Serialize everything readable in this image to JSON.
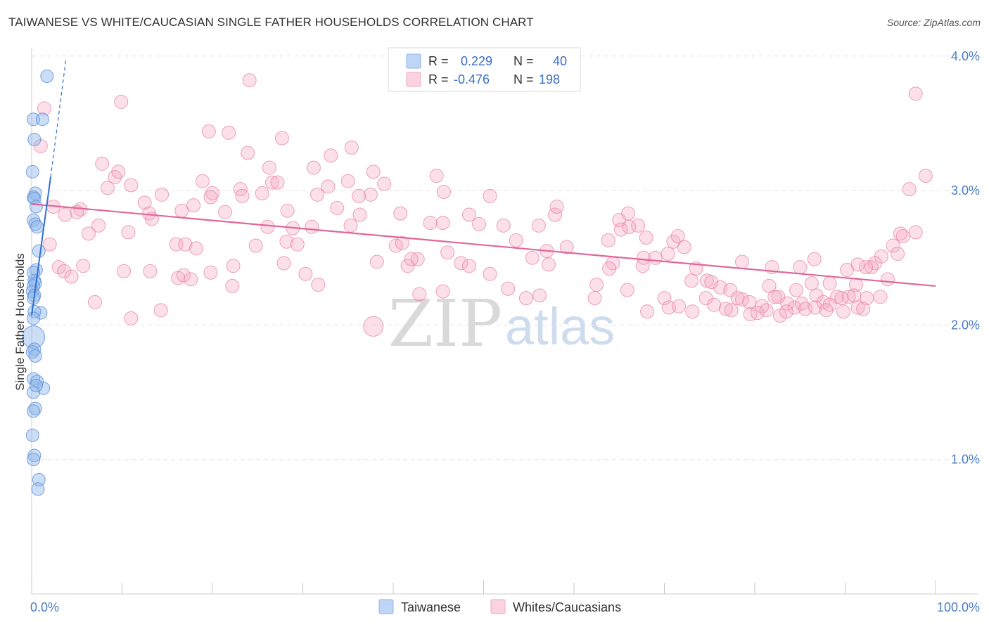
{
  "title": "TAIWANESE VS WHITE/CAUCASIAN SINGLE FATHER HOUSEHOLDS CORRELATION CHART",
  "source": "Source: ZipAtlas.com",
  "colors": {
    "taiwanese": "#8fb5ea",
    "white": "#f3a6c0",
    "blue_line": "#2f6fd4",
    "pink_line": "#e0679a",
    "axis_text": "#4a7cc7"
  },
  "legend": {
    "rows": [
      {
        "r_label": "R =",
        "r_value": "0.229",
        "n_label": "N =",
        "n_value": "40"
      },
      {
        "r_label": "R =",
        "r_value": "-0.476",
        "n_label": "N =",
        "n_value": "198"
      }
    ],
    "bottom": [
      "Taiwanese",
      "Whites/Caucasians"
    ]
  },
  "watermark": {
    "zip": "ZIP",
    "atlas": "atlas"
  },
  "chart_data": {
    "type": "scatter",
    "title": "TAIWANESE VS WHITE/CAUCASIAN SINGLE FATHER HOUSEHOLDS CORRELATION CHART",
    "xlabel": "",
    "ylabel": "Single Father Households",
    "xlim": [
      0,
      100
    ],
    "ylim": [
      0,
      4.2
    ],
    "x_tick_labels": [
      "0.0%",
      "100.0%"
    ],
    "y_ticks": [
      1.0,
      2.0,
      3.0,
      4.0
    ],
    "y_tick_labels": [
      "1.0%",
      "2.0%",
      "3.0%",
      "4.0%"
    ],
    "grid": true,
    "legend_position": "top-center",
    "series": [
      {
        "name": "Taiwanese",
        "r": 0.229,
        "n": 40,
        "trend": {
          "x": [
            0,
            2.1
          ],
          "y": [
            2.07,
            3.1
          ]
        },
        "trend_dashed": {
          "x": [
            2.1,
            3.8
          ],
          "y": [
            3.1,
            3.98
          ]
        },
        "points": [
          [
            1.7,
            3.85
          ],
          [
            0.2,
            3.53
          ],
          [
            1.2,
            3.53
          ],
          [
            0.3,
            3.38
          ],
          [
            0.1,
            3.14
          ],
          [
            0.4,
            2.98
          ],
          [
            0.2,
            2.95
          ],
          [
            0.3,
            2.94
          ],
          [
            0.5,
            2.88
          ],
          [
            0.2,
            2.78
          ],
          [
            0.4,
            2.75
          ],
          [
            0.6,
            2.73
          ],
          [
            0.8,
            2.55
          ],
          [
            0.5,
            2.41
          ],
          [
            0.2,
            2.39
          ],
          [
            0.3,
            2.33
          ],
          [
            0.4,
            2.31
          ],
          [
            0.2,
            2.29
          ],
          [
            0.1,
            2.25
          ],
          [
            0.3,
            2.22
          ],
          [
            0.2,
            2.2
          ],
          [
            1.0,
            2.09
          ],
          [
            0.2,
            1.91
          ],
          [
            0.3,
            1.82
          ],
          [
            0.1,
            1.8
          ],
          [
            0.4,
            1.77
          ],
          [
            0.2,
            1.6
          ],
          [
            0.6,
            1.58
          ],
          [
            1.3,
            1.53
          ],
          [
            0.2,
            1.5
          ],
          [
            0.4,
            1.38
          ],
          [
            0.2,
            1.36
          ],
          [
            0.1,
            1.18
          ],
          [
            0.3,
            1.03
          ],
          [
            0.2,
            1.0
          ],
          [
            0.8,
            0.85
          ],
          [
            0.7,
            0.78
          ],
          [
            0.3,
            2.1
          ],
          [
            0.5,
            1.55
          ],
          [
            0.2,
            2.05
          ]
        ],
        "sizes": [
          9,
          9,
          9,
          9,
          9,
          9,
          9,
          9,
          9,
          9,
          9,
          9,
          9,
          9,
          9,
          9,
          9,
          9,
          9,
          9,
          9,
          9,
          16,
          9,
          9,
          9,
          9,
          9,
          9,
          9,
          9,
          9,
          9,
          9,
          9,
          9,
          9,
          9,
          9,
          9
        ]
      },
      {
        "name": "Whites/Caucasians",
        "r": -0.476,
        "n": 198,
        "trend": {
          "x": [
            0,
            100
          ],
          "y": [
            2.9,
            2.29
          ]
        },
        "points": [
          [
            24.1,
            3.82
          ],
          [
            1.4,
            3.61
          ],
          [
            9.9,
            3.66
          ],
          [
            1.0,
            3.33
          ],
          [
            97.8,
            3.72
          ],
          [
            19.6,
            3.44
          ],
          [
            21.8,
            3.43
          ],
          [
            27.7,
            3.39
          ],
          [
            23.9,
            3.28
          ],
          [
            33.1,
            3.26
          ],
          [
            35.4,
            3.32
          ],
          [
            7.8,
            3.2
          ],
          [
            9.2,
            3.1
          ],
          [
            9.6,
            3.14
          ],
          [
            26.3,
            3.17
          ],
          [
            31.2,
            3.17
          ],
          [
            37.8,
            3.14
          ],
          [
            44.8,
            3.11
          ],
          [
            11.0,
            3.04
          ],
          [
            8.4,
            3.02
          ],
          [
            18.9,
            3.07
          ],
          [
            26.6,
            3.06
          ],
          [
            27.2,
            3.06
          ],
          [
            35.0,
            3.07
          ],
          [
            39.0,
            3.05
          ],
          [
            32.8,
            3.03
          ],
          [
            23.1,
            3.01
          ],
          [
            20.0,
            2.98
          ],
          [
            25.5,
            2.98
          ],
          [
            31.6,
            2.97
          ],
          [
            36.2,
            2.96
          ],
          [
            19.8,
            2.95
          ],
          [
            23.3,
            2.96
          ],
          [
            37.5,
            2.97
          ],
          [
            45.6,
            2.99
          ],
          [
            50.7,
            2.96
          ],
          [
            97.1,
            3.01
          ],
          [
            98.9,
            3.11
          ],
          [
            14.4,
            2.97
          ],
          [
            12.5,
            2.91
          ],
          [
            2.4,
            2.88
          ],
          [
            3.7,
            2.82
          ],
          [
            5.4,
            2.86
          ],
          [
            16.6,
            2.85
          ],
          [
            17.9,
            2.89
          ],
          [
            21.4,
            2.84
          ],
          [
            28.3,
            2.85
          ],
          [
            33.8,
            2.87
          ],
          [
            36.3,
            2.82
          ],
          [
            40.8,
            2.83
          ],
          [
            48.4,
            2.82
          ],
          [
            57.9,
            2.82
          ],
          [
            58.1,
            2.88
          ],
          [
            65.0,
            2.78
          ],
          [
            66.0,
            2.83
          ],
          [
            5.0,
            2.84
          ],
          [
            13.0,
            2.83
          ],
          [
            13.3,
            2.79
          ],
          [
            7.4,
            2.74
          ],
          [
            10.7,
            2.69
          ],
          [
            2.0,
            2.6
          ],
          [
            6.3,
            2.68
          ],
          [
            16.0,
            2.6
          ],
          [
            26.1,
            2.73
          ],
          [
            28.9,
            2.72
          ],
          [
            31.0,
            2.73
          ],
          [
            35.3,
            2.74
          ],
          [
            44.1,
            2.76
          ],
          [
            45.5,
            2.76
          ],
          [
            49.5,
            2.75
          ],
          [
            52.2,
            2.74
          ],
          [
            56.1,
            2.74
          ],
          [
            53.6,
            2.63
          ],
          [
            59.2,
            2.58
          ],
          [
            63.8,
            2.63
          ],
          [
            65.2,
            2.71
          ],
          [
            66.1,
            2.73
          ],
          [
            67.1,
            2.74
          ],
          [
            68.0,
            2.65
          ],
          [
            71.0,
            2.62
          ],
          [
            71.5,
            2.66
          ],
          [
            72.2,
            2.58
          ],
          [
            97.8,
            2.69
          ],
          [
            96.4,
            2.66
          ],
          [
            17.0,
            2.6
          ],
          [
            18.2,
            2.57
          ],
          [
            24.8,
            2.59
          ],
          [
            28.2,
            2.62
          ],
          [
            29.4,
            2.6
          ],
          [
            40.3,
            2.59
          ],
          [
            41.0,
            2.61
          ],
          [
            42.7,
            2.49
          ],
          [
            46.0,
            2.54
          ],
          [
            55.4,
            2.5
          ],
          [
            57.0,
            2.55
          ],
          [
            64.3,
            2.46
          ],
          [
            67.7,
            2.5
          ],
          [
            69.0,
            2.5
          ],
          [
            70.4,
            2.53
          ],
          [
            95.3,
            2.59
          ],
          [
            95.8,
            2.53
          ],
          [
            94.0,
            2.51
          ],
          [
            96.1,
            2.68
          ],
          [
            3.0,
            2.43
          ],
          [
            5.7,
            2.44
          ],
          [
            13.1,
            2.4
          ],
          [
            16.2,
            2.35
          ],
          [
            19.8,
            2.39
          ],
          [
            22.3,
            2.44
          ],
          [
            27.9,
            2.46
          ],
          [
            30.3,
            2.38
          ],
          [
            38.2,
            2.47
          ],
          [
            41.6,
            2.44
          ],
          [
            42.0,
            2.49
          ],
          [
            47.5,
            2.46
          ],
          [
            48.4,
            2.44
          ],
          [
            50.7,
            2.38
          ],
          [
            57.2,
            2.45
          ],
          [
            63.9,
            2.42
          ],
          [
            67.6,
            2.44
          ],
          [
            73.5,
            2.42
          ],
          [
            78.6,
            2.47
          ],
          [
            81.9,
            2.43
          ],
          [
            85.0,
            2.43
          ],
          [
            86.6,
            2.49
          ],
          [
            93.3,
            2.46
          ],
          [
            92.9,
            2.43
          ],
          [
            92.3,
            2.43
          ],
          [
            91.4,
            2.45
          ],
          [
            90.2,
            2.41
          ],
          [
            3.6,
            2.4
          ],
          [
            4.4,
            2.36
          ],
          [
            10.2,
            2.4
          ],
          [
            16.8,
            2.37
          ],
          [
            17.6,
            2.34
          ],
          [
            22.2,
            2.29
          ],
          [
            31.7,
            2.3
          ],
          [
            52.7,
            2.27
          ],
          [
            56.2,
            2.22
          ],
          [
            62.5,
            2.3
          ],
          [
            65.9,
            2.26
          ],
          [
            73.0,
            2.33
          ],
          [
            74.7,
            2.33
          ],
          [
            75.2,
            2.32
          ],
          [
            76.2,
            2.28
          ],
          [
            77.3,
            2.26
          ],
          [
            81.6,
            2.29
          ],
          [
            84.6,
            2.26
          ],
          [
            86.3,
            2.31
          ],
          [
            88.3,
            2.31
          ],
          [
            91.2,
            2.3
          ],
          [
            94.7,
            2.34
          ],
          [
            7.0,
            2.17
          ],
          [
            14.3,
            2.11
          ],
          [
            42.9,
            2.23
          ],
          [
            45.5,
            2.25
          ],
          [
            54.7,
            2.2
          ],
          [
            62.3,
            2.2
          ],
          [
            70.0,
            2.2
          ],
          [
            74.6,
            2.2
          ],
          [
            78.1,
            2.2
          ],
          [
            78.6,
            2.19
          ],
          [
            82.6,
            2.21
          ],
          [
            84.4,
            2.13
          ],
          [
            86.8,
            2.22
          ],
          [
            89.1,
            2.21
          ],
          [
            90.4,
            2.21
          ],
          [
            93.9,
            2.21
          ],
          [
            85.2,
            2.16
          ],
          [
            79.4,
            2.17
          ],
          [
            80.8,
            2.14
          ],
          [
            83.6,
            2.16
          ],
          [
            82.2,
            2.21
          ],
          [
            87.6,
            2.17
          ],
          [
            88.3,
            2.15
          ],
          [
            89.6,
            2.2
          ],
          [
            91.0,
            2.22
          ],
          [
            92.4,
            2.2
          ],
          [
            11.0,
            2.05
          ],
          [
            37.8,
            1.99
          ],
          [
            68.1,
            2.1
          ],
          [
            70.5,
            2.13
          ],
          [
            71.6,
            2.14
          ],
          [
            73.1,
            2.1
          ],
          [
            75.5,
            2.15
          ],
          [
            76.8,
            2.12
          ],
          [
            77.4,
            2.11
          ],
          [
            79.5,
            2.08
          ],
          [
            80.3,
            2.09
          ],
          [
            81.3,
            2.11
          ],
          [
            82.8,
            2.07
          ],
          [
            83.5,
            2.1
          ],
          [
            85.6,
            2.12
          ],
          [
            86.7,
            2.13
          ],
          [
            87.9,
            2.11
          ],
          [
            89.8,
            2.1
          ],
          [
            91.4,
            2.13
          ],
          [
            92.0,
            2.12
          ]
        ],
        "big_points": [
          [
            37.8,
            1.99
          ]
        ]
      }
    ]
  }
}
